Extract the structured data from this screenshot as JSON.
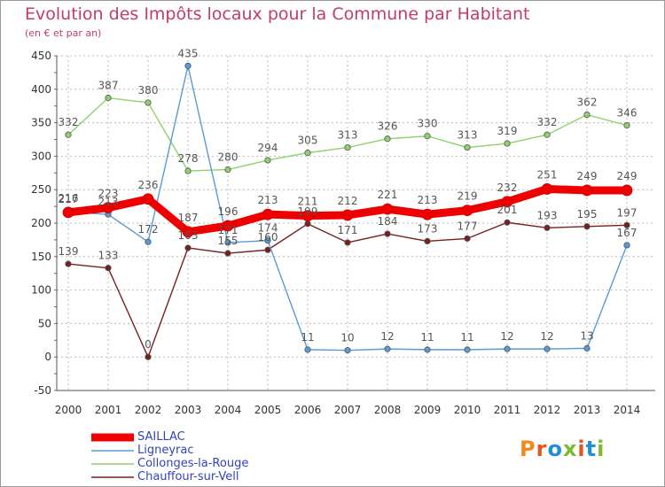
{
  "title": "Evolution des Impôts locaux pour la Commune par Habitant",
  "subtitle": "(en € et par an)",
  "logo_text": "Proxiti",
  "colors": {
    "title": "#c23b6e",
    "grid": "#bbbbbb",
    "axis": "#555555",
    "legend_text": "#3344bb",
    "logo": [
      "#f08a1c",
      "#e8531f",
      "#1f8fd6",
      "#7cbc2a",
      "#e8531f",
      "#1f8fd6",
      "#7cbc2a"
    ]
  },
  "chart_data": {
    "type": "line",
    "title": "Evolution des Impôts locaux pour la Commune par Habitant",
    "subtitle": "(en € et par an)",
    "xlabel": "",
    "ylabel": "",
    "categories": [
      "2000",
      "2001",
      "2002",
      "2003",
      "2004",
      "2005",
      "2006",
      "2007",
      "2008",
      "2009",
      "2010",
      "2011",
      "2012",
      "2013",
      "2014"
    ],
    "ylim": [
      -50,
      450
    ],
    "yticks": [
      "-50",
      "0",
      "50",
      "100",
      "150",
      "200",
      "250",
      "300",
      "350",
      "400",
      "450"
    ],
    "grid": true,
    "legend_position": "bottom-left",
    "series": [
      {
        "name": "SAILLAC",
        "color": "#ee0000",
        "values": [
          216,
          223,
          236,
          187,
          196,
          213,
          211,
          212,
          221,
          213,
          219,
          232,
          251,
          249,
          249
        ],
        "labels": [
          "216",
          "223",
          "236",
          "187",
          "196",
          "213",
          "211",
          "212",
          "221",
          "213",
          "219",
          "232",
          "251",
          "249",
          "249"
        ]
      },
      {
        "name": "Ligneyrac",
        "color": "#5b9bd5",
        "values": [
          217,
          213,
          172,
          435,
          171,
          174,
          11,
          10,
          12,
          11,
          11,
          12,
          12,
          13,
          167
        ],
        "labels": [
          "217",
          "213",
          "172",
          "435",
          "171",
          "174",
          "11",
          "10",
          "12",
          "11",
          "11",
          "12",
          "12",
          "13",
          "167"
        ]
      },
      {
        "name": "Collonges-la-Rouge",
        "color": "#8fd16a",
        "values": [
          332,
          387,
          380,
          278,
          280,
          294,
          305,
          313,
          326,
          330,
          313,
          319,
          332,
          362,
          346
        ],
        "labels": [
          "332",
          "387",
          "380",
          "278",
          "280",
          "294",
          "305",
          "313",
          "326",
          "330",
          "313",
          "319",
          "332",
          "362",
          "346"
        ]
      },
      {
        "name": "Chauffour-sur-Vell",
        "color": "#7a1f1f",
        "values": [
          139,
          133,
          0,
          163,
          155,
          160,
          199,
          171,
          184,
          173,
          177,
          201,
          193,
          195,
          197
        ],
        "labels": [
          "139",
          "133",
          "0",
          "163",
          "155",
          "160",
          "199",
          "171",
          "184",
          "173",
          "177",
          "201",
          "193",
          "195",
          "197"
        ]
      }
    ]
  }
}
